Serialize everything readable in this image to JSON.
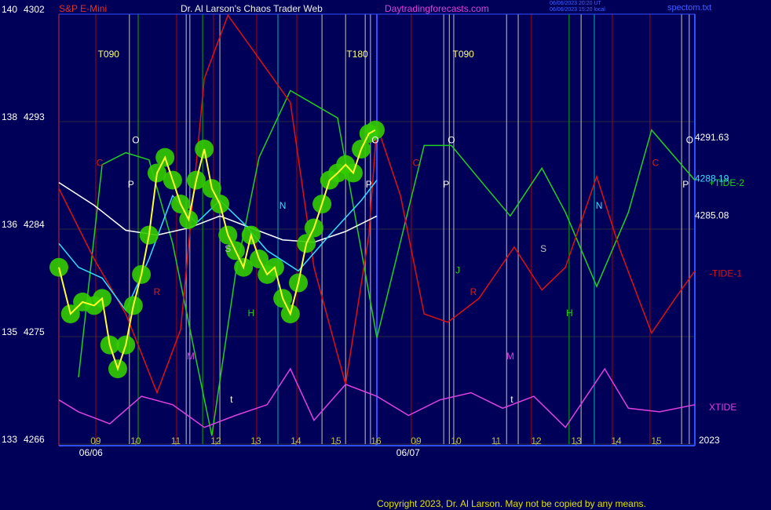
{
  "chart_data": {
    "type": "line",
    "title": "Dr. Al Larson's Chaos Trader Web",
    "subtitle": "S&P E-Mini",
    "website": "Daytradingforecasts.com",
    "timestamp_lines": [
      "06/06/2023 20:20 UT",
      "06/06/2023 15:20 local"
    ],
    "file_name": "spectom.txt",
    "copyright": "Copyright 2023, Dr. Al Larson. May not be copied by any means.",
    "year_label": "2023",
    "xlim": [
      8.08,
      23.96
    ],
    "xticks": [
      {
        "value": 9,
        "label": "09"
      },
      10,
      11,
      12,
      13,
      14,
      15,
      16,
      {
        "value": 17,
        "label": "09"
      },
      {
        "value": 18,
        "label": "10"
      },
      {
        "value": 19,
        "label": "11"
      },
      {
        "value": 20,
        "label": "12"
      },
      {
        "value": 21,
        "label": "13"
      },
      {
        "value": 22,
        "label": "14"
      },
      {
        "value": 23,
        "label": "15"
      }
    ],
    "day_labels": [
      {
        "x": 8.88,
        "label": "06/06"
      },
      {
        "x": 16.8,
        "label": "06/07"
      }
    ],
    "ylim": [
      4266,
      4302
    ],
    "yticks": [
      4266,
      4275,
      4284,
      4293,
      4302
    ],
    "left_scale_labels": [
      "133",
      "135",
      "136",
      "138",
      "140"
    ],
    "grid": true,
    "level_labels": [
      {
        "value": 4291.63,
        "label": "4291.63",
        "color": "#ffffff"
      },
      {
        "value": 4288.19,
        "label": "4288.19",
        "color": "#40e0ff"
      },
      {
        "value": 4285.08,
        "label": "4285.08",
        "color": "#ffffff"
      }
    ],
    "vlines": [
      {
        "x": 9.0,
        "color": "#b00000"
      },
      {
        "x": 9.84,
        "color": "#c0c0c0"
      },
      {
        "x": 10.06,
        "color": "#00b000"
      },
      {
        "x": 11.02,
        "color": "#b00000"
      },
      {
        "x": 11.26,
        "color": "#c0c0c0"
      },
      {
        "x": 11.35,
        "color": "#c0c0c0"
      },
      {
        "x": 11.67,
        "color": "#00b000"
      },
      {
        "x": 11.94,
        "color": "#b00000"
      },
      {
        "x": 12.1,
        "color": "#c0c0c0"
      },
      {
        "x": 13.02,
        "color": "#b00000"
      },
      {
        "x": 13.55,
        "color": "#00b0b0"
      },
      {
        "x": 14.02,
        "color": "#b00000"
      },
      {
        "x": 14.65,
        "color": "#c0c0c0"
      },
      {
        "x": 15.24,
        "color": "#c0c0c0"
      },
      {
        "x": 15.73,
        "color": "#c0c0c0"
      },
      {
        "x": 15.86,
        "color": "#c0c0c0"
      },
      {
        "x": 16.88,
        "color": "#b00000"
      },
      {
        "x": 17.69,
        "color": "#c0c0c0"
      },
      {
        "x": 17.83,
        "color": "#c0c0c0"
      },
      {
        "x": 17.94,
        "color": "#c0c0c0"
      },
      {
        "x": 19.26,
        "color": "#c0c0c0"
      },
      {
        "x": 19.55,
        "color": "#c0c0c0"
      },
      {
        "x": 19.88,
        "color": "#b00000"
      },
      {
        "x": 20.82,
        "color": "#00b000"
      },
      {
        "x": 21.12,
        "color": "#c0c0c0"
      },
      {
        "x": 21.45,
        "color": "#00b0b0"
      },
      {
        "x": 21.9,
        "color": "#b00000"
      },
      {
        "x": 22.84,
        "color": "#b00000"
      },
      {
        "x": 23.63,
        "color": "#c0c0c0"
      },
      {
        "x": 23.82,
        "color": "#c0c0c0"
      }
    ],
    "series": [
      {
        "name": "+TIDE-2",
        "color": "#20d020",
        "x": [
          8.57,
          9.16,
          9.75,
          10.33,
          10.92,
          11.51,
          11.9,
          12.49,
          13.08,
          13.86,
          15.04,
          16.02,
          17.2,
          17.88,
          18.77,
          19.35,
          20.14,
          20.73,
          21.51,
          22.3,
          22.88,
          23.47,
          23.96
        ],
        "values": [
          4271.6,
          4289.4,
          4290.4,
          4289.8,
          4282.8,
          4273.0,
          4266.7,
          4280.2,
          4290.0,
          4295.6,
          4293.3,
          4274.9,
          4291.0,
          4291.0,
          4287.4,
          4285.1,
          4289.1,
          4285.4,
          4279.2,
          4285.4,
          4292.3,
          4290.0,
          4288.1
        ]
      },
      {
        "name": "-TIDE-1",
        "color": "#e01010",
        "x": [
          8.08,
          8.96,
          9.75,
          10.53,
          11.12,
          11.71,
          12.3,
          12.88,
          13.86,
          14.45,
          15.24,
          15.82,
          16.02,
          16.61,
          17.2,
          17.79,
          18.57,
          19.45,
          20.14,
          20.73,
          21.51,
          22.1,
          22.88,
          23.47,
          23.96
        ],
        "values": [
          4287.4,
          4281.5,
          4276.9,
          4270.3,
          4275.6,
          4296.6,
          4301.9,
          4299.2,
          4294.6,
          4280.8,
          4271.0,
          4283.5,
          4292.7,
          4286.8,
          4276.9,
          4276.2,
          4278.2,
          4282.5,
          4278.9,
          4280.8,
          4288.4,
          4282.2,
          4275.3,
          4278.2,
          4280.5
        ]
      },
      {
        "name": "XTIDE",
        "color": "#e040e0",
        "x": [
          8.08,
          8.57,
          9.35,
          10.14,
          10.92,
          11.71,
          12.49,
          13.28,
          13.86,
          14.45,
          15.24,
          16.02,
          16.81,
          17.59,
          18.37,
          19.16,
          19.94,
          20.73,
          21.71,
          22.3,
          23.08,
          23.96
        ],
        "values": [
          4269.7,
          4268.7,
          4267.7,
          4270.0,
          4269.3,
          4267.4,
          4268.4,
          4269.3,
          4272.3,
          4268.0,
          4271.0,
          4270.0,
          4268.4,
          4269.7,
          4270.3,
          4269.0,
          4270.0,
          4267.4,
          4272.3,
          4269.0,
          4268.7,
          4269.3
        ]
      },
      {
        "color": "#ffffff",
        "x": [
          8.08,
          8.96,
          9.75,
          10.53,
          11.32,
          12.1,
          12.88,
          13.67,
          14.45,
          15.24,
          16.02
        ],
        "values": [
          4287.9,
          4286.0,
          4283.9,
          4283.5,
          4284.1,
          4285.1,
          4284.1,
          4283.1,
          4282.9,
          4283.8,
          4285.1
        ]
      },
      {
        "color": "#30e0ff",
        "x": [
          8.08,
          8.57,
          9.16,
          9.75,
          10.33,
          10.92,
          11.51,
          12.1,
          12.69,
          13.28,
          14.06,
          14.84,
          15.63,
          16.02
        ],
        "values": [
          4282.8,
          4280.8,
          4279.9,
          4277.2,
          4281.5,
          4286.8,
          4284.5,
          4286.4,
          4284.5,
          4282.2,
          4280.5,
          4283.5,
          4286.4,
          4288.1
        ]
      },
      {
        "color": "#ffff30",
        "marker_color": "#33cc00",
        "x": [
          8.08,
          8.37,
          8.67,
          8.96,
          9.16,
          9.35,
          9.55,
          9.75,
          9.94,
          10.14,
          10.33,
          10.53,
          10.73,
          10.92,
          11.12,
          11.32,
          11.51,
          11.71,
          11.9,
          12.1,
          12.3,
          12.49,
          12.69,
          12.88,
          13.08,
          13.28,
          13.47,
          13.67,
          13.86,
          14.06,
          14.26,
          14.45,
          14.65,
          14.84,
          15.04,
          15.24,
          15.43,
          15.63,
          15.82,
          15.98
        ],
        "values": [
          4280.8,
          4276.9,
          4277.9,
          4277.6,
          4278.2,
          4274.3,
          4272.3,
          4274.3,
          4277.6,
          4280.2,
          4283.5,
          4288.7,
          4290.0,
          4288.1,
          4286.1,
          4284.8,
          4288.1,
          4290.7,
          4287.4,
          4286.1,
          4283.5,
          4282.2,
          4280.8,
          4283.5,
          4281.5,
          4280.2,
          4280.8,
          4278.2,
          4276.9,
          4279.5,
          4282.8,
          4284.1,
          4286.1,
          4288.1,
          4288.7,
          4289.4,
          4288.7,
          4290.7,
          4292.0,
          4292.3
        ]
      }
    ],
    "annotations": [
      {
        "text": "T090",
        "x": 9.32,
        "y": 4298.6,
        "color": "#ffff80"
      },
      {
        "text": "T180",
        "x": 15.53,
        "y": 4298.6,
        "color": "#ffff80"
      },
      {
        "text": "T090",
        "x": 18.18,
        "y": 4298.6,
        "color": "#ffff80"
      },
      {
        "text": "O",
        "x": 10.0,
        "y": 4291.4,
        "color": "#ffffff"
      },
      {
        "text": "P",
        "x": 9.88,
        "y": 4287.7,
        "color": "#ffffff"
      },
      {
        "text": "C",
        "x": 9.1,
        "y": 4289.5,
        "color": "#d02020"
      },
      {
        "text": "R",
        "x": 10.53,
        "y": 4278.7,
        "color": "#d02020"
      },
      {
        "text": "M",
        "x": 11.37,
        "y": 4273.3,
        "color": "#e040e0"
      },
      {
        "text": "t",
        "x": 12.39,
        "y": 4269.7,
        "color": "#ffffff"
      },
      {
        "text": "S",
        "x": 12.3,
        "y": 4282.3,
        "color": "#c0c0c0"
      },
      {
        "text": "H",
        "x": 12.88,
        "y": 4276.9,
        "color": "#20d020"
      },
      {
        "text": "N",
        "x": 13.67,
        "y": 4285.9,
        "color": "#40e0ff"
      },
      {
        "text": "O",
        "x": 15.98,
        "y": 4291.4,
        "color": "#ffffff"
      },
      {
        "text": "P",
        "x": 15.82,
        "y": 4287.7,
        "color": "#ffffff"
      },
      {
        "text": "C",
        "x": 17.0,
        "y": 4289.5,
        "color": "#d02020"
      },
      {
        "text": "P",
        "x": 17.75,
        "y": 4287.7,
        "color": "#ffffff"
      },
      {
        "text": "O",
        "x": 17.88,
        "y": 4291.4,
        "color": "#ffffff"
      },
      {
        "text": "J",
        "x": 18.04,
        "y": 4280.5,
        "color": "#20d020"
      },
      {
        "text": "R",
        "x": 18.43,
        "y": 4278.7,
        "color": "#d02020"
      },
      {
        "text": "M",
        "x": 19.35,
        "y": 4273.3,
        "color": "#e040e0"
      },
      {
        "text": "t",
        "x": 19.39,
        "y": 4269.7,
        "color": "#ffffff"
      },
      {
        "text": "S",
        "x": 20.18,
        "y": 4282.3,
        "color": "#c0c0c0"
      },
      {
        "text": "H",
        "x": 20.83,
        "y": 4276.9,
        "color": "#20d020"
      },
      {
        "text": "N",
        "x": 21.57,
        "y": 4285.9,
        "color": "#40e0ff"
      },
      {
        "text": "C",
        "x": 22.98,
        "y": 4289.5,
        "color": "#d02020"
      },
      {
        "text": "P",
        "x": 23.73,
        "y": 4287.7,
        "color": "#ffffff"
      },
      {
        "text": "O",
        "x": 23.83,
        "y": 4291.4,
        "color": "#ffffff"
      }
    ]
  }
}
